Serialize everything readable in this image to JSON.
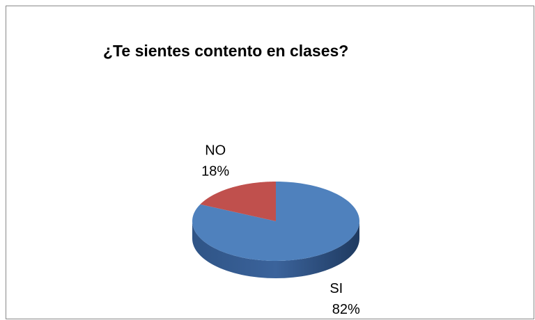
{
  "chart_data": {
    "type": "pie3d",
    "title": "¿Te sientes contento en clases?",
    "categories": [
      "SI",
      "NO"
    ],
    "values": [
      82,
      18
    ],
    "value_labels": [
      "82%",
      "18%"
    ],
    "colors": [
      "#4f81bd",
      "#c0504d"
    ]
  }
}
